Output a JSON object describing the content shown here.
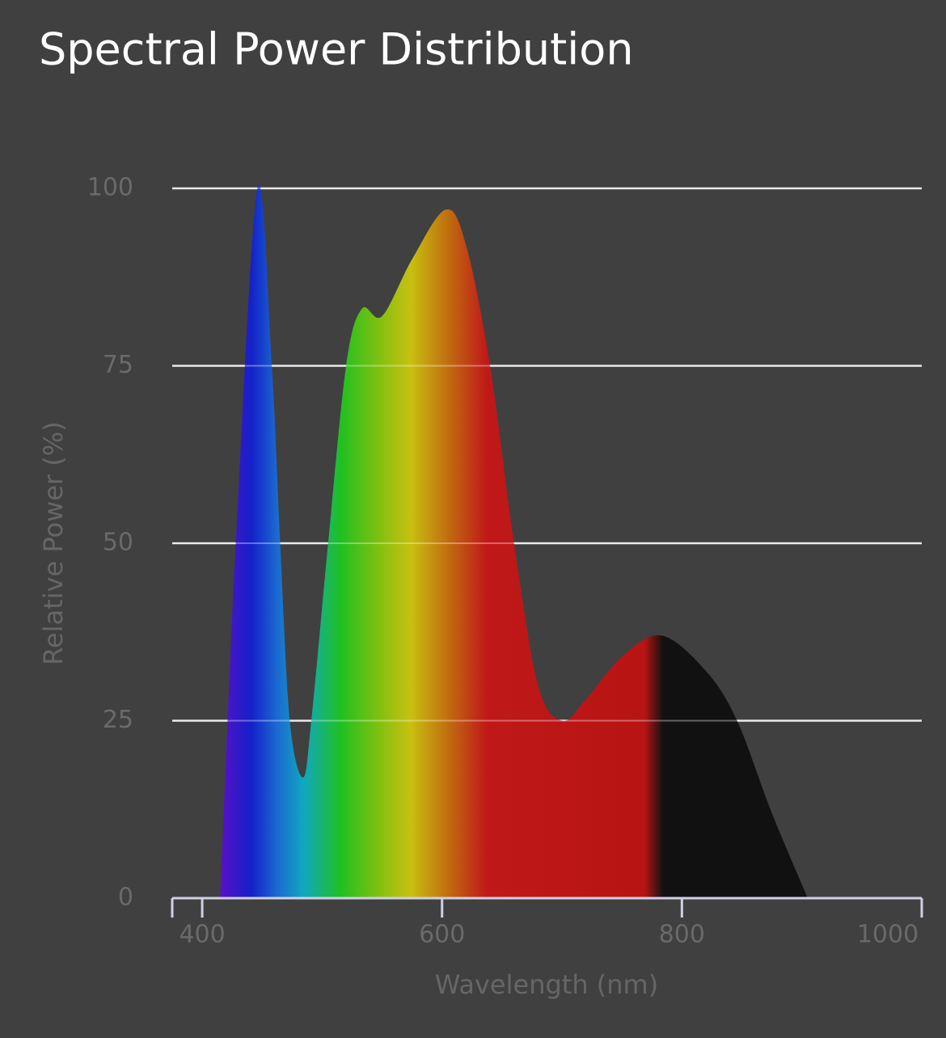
{
  "chart_data": {
    "type": "area",
    "title": "Spectral Power Distribution",
    "x_label": "Wavelength (nm)",
    "y_label": "Relative Power (%)",
    "x": [
      415,
      428,
      446,
      458,
      465,
      473,
      484,
      491,
      505,
      520,
      533,
      550,
      575,
      603,
      620,
      640,
      660,
      680,
      700,
      720,
      750,
      783,
      820,
      846,
      875,
      905
    ],
    "values": [
      0,
      50,
      100,
      75,
      50,
      25,
      17,
      25,
      50,
      75,
      83,
      82,
      90,
      97,
      92,
      75,
      50,
      30,
      25,
      28,
      34,
      37,
      32,
      25,
      12,
      0
    ],
    "xlim": [
      375,
      1000
    ],
    "ylim": [
      0,
      100
    ],
    "xticks": [
      400,
      600,
      800,
      1000
    ],
    "yticks": [
      0,
      25,
      50,
      75,
      100
    ],
    "grid": true
  }
}
